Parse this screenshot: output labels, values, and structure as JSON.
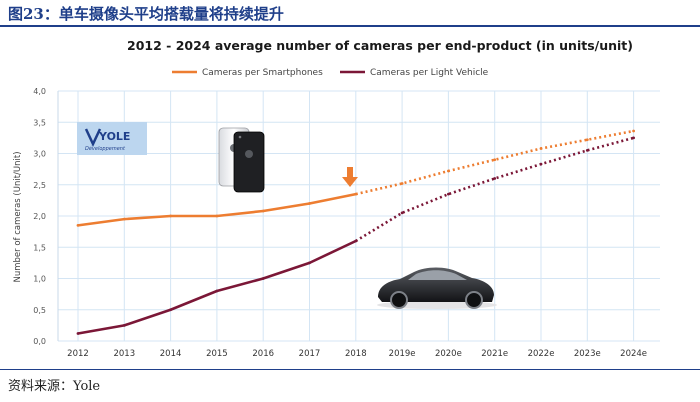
{
  "figure": {
    "title": "图23：单车摄像头平均搭载量将持续提升",
    "source": "资料来源：Yole"
  },
  "logo": {
    "name": "YOLE",
    "subtitle": "Développement"
  },
  "colors": {
    "smartphone": "#ed7d31",
    "vehicle": "#7b1737",
    "figure_title": "#1f3f8a"
  },
  "chart_data": {
    "type": "line",
    "title": "2012 - 2024 average number of cameras per end-product (in units/unit)",
    "xlabel": "",
    "ylabel": "Number of cameras (Unit/Unit)",
    "categories": [
      "2012",
      "2013",
      "2014",
      "2015",
      "2016",
      "2017",
      "2018",
      "2019e",
      "2020e",
      "2021e",
      "2022e",
      "2023e",
      "2024e"
    ],
    "ylim": [
      0,
      4
    ],
    "yticks": [
      "0,0",
      "0,5",
      "1,0",
      "1,5",
      "2,0",
      "2,5",
      "3,0",
      "3,5",
      "4,0"
    ],
    "grid": true,
    "legend_position": "top",
    "forecast_start_index": 6,
    "series": [
      {
        "name": "Cameras per Smartphones",
        "values": [
          1.85,
          1.95,
          2.0,
          2.0,
          2.08,
          2.2,
          2.35,
          2.52,
          2.72,
          2.9,
          3.08,
          3.22,
          3.36
        ]
      },
      {
        "name": "Cameras per Light Vehicle",
        "values": [
          0.12,
          0.25,
          0.5,
          0.8,
          1.0,
          1.25,
          1.6,
          2.05,
          2.35,
          2.6,
          2.83,
          3.05,
          3.25
        ]
      }
    ],
    "annotation": "forecast-marker-arrow"
  }
}
